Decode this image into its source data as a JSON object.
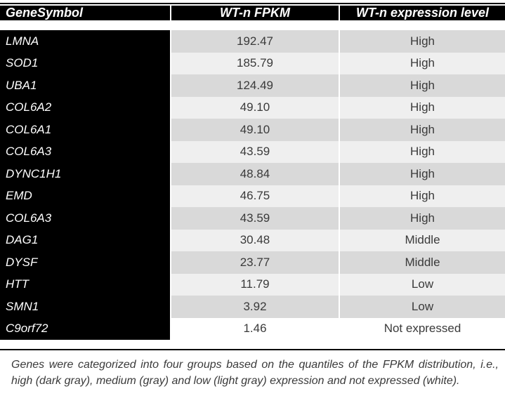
{
  "table": {
    "headers": [
      "GeneSymbol",
      "WT-n FPKM",
      "WT-n expression level"
    ],
    "rows": [
      {
        "gene": "LMNA",
        "fpkm": "192.47",
        "level": "High"
      },
      {
        "gene": "SOD1",
        "fpkm": "185.79",
        "level": "High"
      },
      {
        "gene": "UBA1",
        "fpkm": "124.49",
        "level": "High"
      },
      {
        "gene": "COL6A2",
        "fpkm": "49.10",
        "level": "High"
      },
      {
        "gene": "COL6A1",
        "fpkm": "49.10",
        "level": "High"
      },
      {
        "gene": "COL6A3",
        "fpkm": "43.59",
        "level": "High"
      },
      {
        "gene": "DYNC1H1",
        "fpkm": "48.84",
        "level": "High"
      },
      {
        "gene": "EMD",
        "fpkm": "46.75",
        "level": "High"
      },
      {
        "gene": "COL6A3",
        "fpkm": "43.59",
        "level": "High"
      },
      {
        "gene": "DAG1",
        "fpkm": "30.48",
        "level": "Middle"
      },
      {
        "gene": "DYSF",
        "fpkm": "23.77",
        "level": "Middle"
      },
      {
        "gene": "HTT",
        "fpkm": "11.79",
        "level": "Low"
      },
      {
        "gene": "SMN1",
        "fpkm": "3.92",
        "level": "Low"
      },
      {
        "gene": "C9orf72",
        "fpkm": "1.46",
        "level": "Not expressed"
      }
    ]
  },
  "footnote": "Genes were categorized into four groups based on the quantiles of the FPKM distribution, i.e., high (dark gray), medium (gray) and low (light gray) expression and not expressed (white).",
  "colors": {
    "header_bg": "#000000",
    "gene_col_bg": "#000000",
    "row_dark": "#d9d9d9",
    "row_light": "#efefef",
    "row_last": "#ffffff"
  }
}
